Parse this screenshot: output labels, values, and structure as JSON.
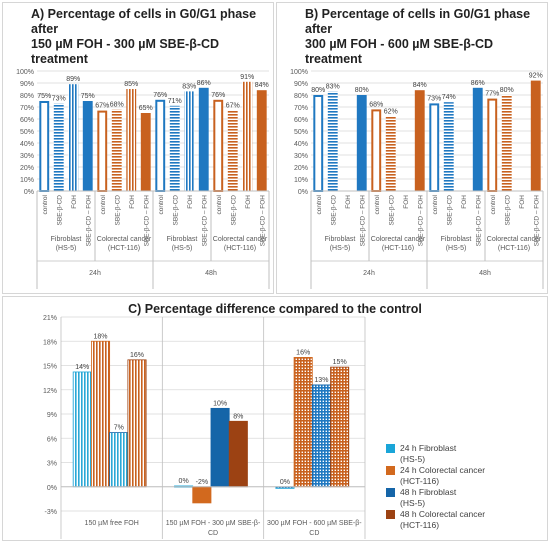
{
  "chart_data": [
    {
      "id": "A",
      "type": "bar",
      "title_lines": [
        "A) Percentage of cells in G0/G1 phase after",
        "150 µM FOH - 300 µM SBE-β-CD treatment"
      ],
      "ylim": [
        0,
        100
      ],
      "yticks": [
        "0%",
        "10%",
        "20%",
        "30%",
        "40%",
        "50%",
        "60%",
        "70%",
        "80%",
        "90%",
        "100%"
      ],
      "bars": [
        {
          "label": "control",
          "value": 75,
          "text": "75%",
          "style": "outline-blue"
        },
        {
          "label": "SBE-β-CD",
          "value": 73,
          "text": "73%",
          "style": "hstripe-blue"
        },
        {
          "label": "FOH",
          "value": 89,
          "text": "89%",
          "style": "vstripe-blue"
        },
        {
          "label": "SBE-β-CD – FOH",
          "value": 75,
          "text": "75%",
          "style": "solid-blue"
        },
        {
          "label": "control",
          "value": 67,
          "text": "67%",
          "style": "outline-orange"
        },
        {
          "label": "SBE-β-CD",
          "value": 68,
          "text": "68%",
          "style": "hstripe-orange"
        },
        {
          "label": "FOH",
          "value": 85,
          "text": "85%",
          "style": "vstripe-orange"
        },
        {
          "label": "SBE-β-CD – FOH",
          "value": 65,
          "text": "65%",
          "style": "solid-orange"
        },
        {
          "label": "control",
          "value": 76,
          "text": "76%",
          "style": "outline-blue"
        },
        {
          "label": "SBE-β-CD",
          "value": 71,
          "text": "71%",
          "style": "hstripe-blue"
        },
        {
          "label": "FOH",
          "value": 83,
          "text": "83%",
          "style": "vstripe-blue"
        },
        {
          "label": "SBE-β-CD – FOH",
          "value": 86,
          "text": "86%",
          "style": "solid-blue"
        },
        {
          "label": "control",
          "value": 76,
          "text": "76%",
          "style": "outline-orange"
        },
        {
          "label": "SBE-β-CD",
          "value": 67,
          "text": "67%",
          "style": "hstripe-orange"
        },
        {
          "label": "FOH",
          "value": 91,
          "text": "91%",
          "style": "vstripe-orange"
        },
        {
          "label": "SBE-β-CD – FOH",
          "value": 84,
          "text": "84%",
          "style": "solid-orange"
        }
      ],
      "groups": [
        {
          "lines": [
            "Fibroblast",
            "(HS-5)"
          ],
          "span": [
            0,
            3
          ]
        },
        {
          "lines": [
            "Colorectal cancer",
            "(HCT-116)"
          ],
          "span": [
            4,
            7
          ]
        },
        {
          "lines": [
            "Fibroblast",
            "(HS-5)"
          ],
          "span": [
            8,
            11
          ]
        },
        {
          "lines": [
            "Colorectal cancer",
            "(HCT-116)"
          ],
          "span": [
            12,
            15
          ]
        }
      ],
      "times": [
        {
          "label": "24h",
          "span": [
            0,
            7
          ]
        },
        {
          "label": "48h",
          "span": [
            8,
            15
          ]
        }
      ]
    },
    {
      "id": "B",
      "type": "bar",
      "title_lines": [
        "B) Percentage of cells in G0/G1 phase after",
        "300 µM FOH - 600 µM SBE-β-CD treatment"
      ],
      "ylim": [
        0,
        100
      ],
      "yticks": [
        "0%",
        "10%",
        "20%",
        "30%",
        "40%",
        "50%",
        "60%",
        "70%",
        "80%",
        "90%",
        "100%"
      ],
      "bars": [
        {
          "label": "control",
          "value": 80,
          "text": "80%",
          "style": "outline-blue"
        },
        {
          "label": "SBE-β-CD",
          "value": 83,
          "text": "83%",
          "style": "hstripe-blue"
        },
        {
          "label": "FOH",
          "value": null,
          "text": "",
          "style": "vstripe-blue"
        },
        {
          "label": "SBE-β-CD – FOH",
          "value": 80,
          "text": "80%",
          "style": "solid-blue"
        },
        {
          "label": "control",
          "value": 68,
          "text": "68%",
          "style": "outline-orange"
        },
        {
          "label": "SBE-β-CD",
          "value": 62,
          "text": "62%",
          "style": "hstripe-orange"
        },
        {
          "label": "FOH",
          "value": null,
          "text": "",
          "style": "vstripe-orange"
        },
        {
          "label": "SBE-β-CD – FOH",
          "value": 84,
          "text": "84%",
          "style": "solid-orange"
        },
        {
          "label": "control",
          "value": 73,
          "text": "73%",
          "style": "outline-blue"
        },
        {
          "label": "SBE-β-CD",
          "value": 74,
          "text": "74%",
          "style": "hstripe-blue"
        },
        {
          "label": "FOH",
          "value": null,
          "text": "",
          "style": "vstripe-blue"
        },
        {
          "label": "SBE-β-CD – FOH",
          "value": 86,
          "text": "86%",
          "style": "solid-blue"
        },
        {
          "label": "control",
          "value": 77,
          "text": "77%",
          "style": "outline-orange"
        },
        {
          "label": "SBE-β-CD",
          "value": 80,
          "text": "80%",
          "style": "hstripe-orange"
        },
        {
          "label": "FOH",
          "value": null,
          "text": "",
          "style": "vstripe-orange"
        },
        {
          "label": "SBE-β-CD – FOH",
          "value": 92,
          "text": "92%",
          "style": "solid-orange"
        }
      ],
      "groups": [
        {
          "lines": [
            "Fibroblast",
            "(HS-5)"
          ],
          "span": [
            0,
            3
          ]
        },
        {
          "lines": [
            "Colorectal cancer",
            "(HCT-116)"
          ],
          "span": [
            4,
            7
          ]
        },
        {
          "lines": [
            "Fibroblast",
            "(HS-5)"
          ],
          "span": [
            8,
            11
          ]
        },
        {
          "lines": [
            "Colorectal cancer",
            "(HCT-116)"
          ],
          "span": [
            12,
            15
          ]
        }
      ],
      "times": [
        {
          "label": "24h",
          "span": [
            0,
            7
          ]
        },
        {
          "label": "48h",
          "span": [
            8,
            15
          ]
        }
      ]
    },
    {
      "id": "C",
      "type": "bar",
      "title": "C) Percentage difference compared to the control",
      "ylim": [
        -3,
        21
      ],
      "yticks": [
        "-3%",
        "0%",
        "3%",
        "6%",
        "9%",
        "12%",
        "15%",
        "18%",
        "21%"
      ],
      "categories": [
        {
          "lines": [
            "150 µM free FOH"
          ]
        },
        {
          "lines": [
            "150 µM FOH - 300 µM SBE-β-",
            "CD"
          ]
        },
        {
          "lines": [
            "300 µM FOH - 600 µM SBE-β-",
            "CD"
          ]
        }
      ],
      "series": [
        {
          "legend_lines": [
            "24 h Fibroblast",
            "(HS-5)"
          ],
          "values": [
            14.2,
            0.1,
            -0.2
          ],
          "labels": [
            "14%",
            "0%",
            "0%"
          ],
          "color": "#1aa5d8"
        },
        {
          "legend_lines": [
            "24 h Colorectal cancer",
            "(HCT-116)"
          ],
          "values": [
            18,
            -2,
            16
          ],
          "labels": [
            "18%",
            "-2%",
            "16%"
          ],
          "color": "#d2691e"
        },
        {
          "legend_lines": [
            "48 h Fibroblast",
            "(HS-5)"
          ],
          "values": [
            6.7,
            9.7,
            12.6
          ],
          "labels": [
            "7%",
            "10%",
            "13%"
          ],
          "color": "#1565a8"
        },
        {
          "legend_lines": [
            "48 h Colorectal cancer",
            "(HCT-116)"
          ],
          "values": [
            15.7,
            8.1,
            14.8
          ],
          "labels": [
            "16%",
            "8%",
            "15%"
          ],
          "color": "#9c4213"
        }
      ],
      "bar_patterns": [
        [
          "vstripe-cyan",
          "vstripe-orange",
          "vstripe-cyan",
          "vstripe-orange"
        ],
        [
          "solid",
          "solid",
          "solid",
          "solid"
        ],
        [
          "check-blue",
          "check-orange",
          "check-blue",
          "check-orange"
        ]
      ]
    }
  ],
  "colors": {
    "blue": "#1f78c1",
    "orange": "#c8611f",
    "darkblue": "#1565a8",
    "darkorange": "#9c4213",
    "grid": "#d9d9d9",
    "axis_text": "#595959"
  }
}
